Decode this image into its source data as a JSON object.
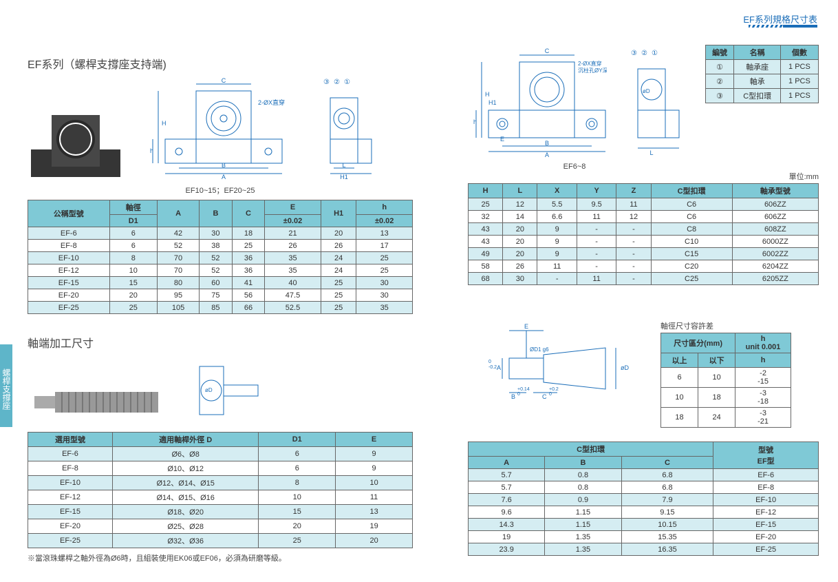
{
  "header": {
    "title": "EF系列規格尺寸表"
  },
  "sideTab": "螺桿支撐座",
  "section1": {
    "title": "EF系列（螺桿支撐座支持端)",
    "caption_left": "EF10~15；EF20~25",
    "caption_right": "EF6~8",
    "diag_labels": {
      "c": "C",
      "a": "A",
      "b": "B",
      "h": "H",
      "h1": "H1",
      "hsm": "h",
      "l": "L",
      "x2": "2-ØX直穿",
      "x2zy": "2-ØX直穿\\n沉柱孔ØY深Z",
      "m1": "①",
      "m2": "②",
      "m3": "③",
      "d": "øD",
      "e": "E"
    }
  },
  "parts": {
    "headers": [
      "編號",
      "名稱",
      "個數"
    ],
    "rows": [
      [
        "①",
        "軸承座",
        "1 PCS"
      ],
      [
        "②",
        "軸承",
        "1 PCS"
      ],
      [
        "③",
        "C型扣環",
        "1 PCS"
      ]
    ]
  },
  "unit": "單位:mm",
  "table1_left": {
    "headers": [
      "公稱型號",
      "軸徑\\nD1",
      "A",
      "B",
      "C",
      "E\\n±0.02",
      "H1",
      "h\\n±0.02"
    ],
    "rows": [
      [
        "EF-6",
        "6",
        "42",
        "30",
        "18",
        "21",
        "20",
        "13"
      ],
      [
        "EF-8",
        "6",
        "52",
        "38",
        "25",
        "26",
        "26",
        "17"
      ],
      [
        "EF-10",
        "8",
        "70",
        "52",
        "36",
        "35",
        "24",
        "25"
      ],
      [
        "EF-12",
        "10",
        "70",
        "52",
        "36",
        "35",
        "24",
        "25"
      ],
      [
        "EF-15",
        "15",
        "80",
        "60",
        "41",
        "40",
        "25",
        "30"
      ],
      [
        "EF-20",
        "20",
        "95",
        "75",
        "56",
        "47.5",
        "25",
        "30"
      ],
      [
        "EF-25",
        "25",
        "105",
        "85",
        "66",
        "52.5",
        "25",
        "35"
      ]
    ]
  },
  "table1_right": {
    "headers": [
      "H",
      "L",
      "X",
      "Y",
      "Z",
      "C型扣環",
      "軸承型號"
    ],
    "rows": [
      [
        "25",
        "12",
        "5.5",
        "9.5",
        "11",
        "C6",
        "606ZZ"
      ],
      [
        "32",
        "14",
        "6.6",
        "11",
        "12",
        "C6",
        "606ZZ"
      ],
      [
        "43",
        "20",
        "9",
        "-",
        "-",
        "C8",
        "608ZZ"
      ],
      [
        "43",
        "20",
        "9",
        "-",
        "-",
        "C10",
        "6000ZZ"
      ],
      [
        "49",
        "20",
        "9",
        "-",
        "-",
        "C15",
        "6002ZZ"
      ],
      [
        "58",
        "26",
        "11",
        "-",
        "-",
        "C20",
        "6204ZZ"
      ],
      [
        "68",
        "30",
        "-",
        "11",
        "-",
        "C25",
        "6205ZZ"
      ]
    ]
  },
  "section2": {
    "title": "軸端加工尺寸",
    "diag_labels": {
      "e": "E",
      "d1g6": "ØD1 g6",
      "a": "A",
      "b": "B",
      "c": "C",
      "d": "øD",
      "bplus": "+0.14\\n  0",
      "cplus": "+0.2\\n  0",
      "aminus": " 0\\n-0.2"
    }
  },
  "tolerance": {
    "title": "軸徑尺寸容許差",
    "headers": [
      "尺寸區分(mm)",
      "h\\nunit 0.001"
    ],
    "sub": [
      "以上",
      "以下",
      "h"
    ],
    "rows": [
      [
        "6",
        "10",
        "-2\\n-15"
      ],
      [
        "10",
        "18",
        "-3\\n-18"
      ],
      [
        "18",
        "24",
        "-3\\n-21"
      ]
    ]
  },
  "table2_left": {
    "headers": [
      "選用型號",
      "適用軸桿外徑 D",
      "D1",
      "E"
    ],
    "rows": [
      [
        "EF-6",
        "Ø6、Ø8",
        "6",
        "9"
      ],
      [
        "EF-8",
        "Ø10、Ø12",
        "6",
        "9"
      ],
      [
        "EF-10",
        "Ø12、Ø14、Ø15",
        "8",
        "10"
      ],
      [
        "EF-12",
        "Ø14、Ø15、Ø16",
        "10",
        "11"
      ],
      [
        "EF-15",
        "Ø18、Ø20",
        "15",
        "13"
      ],
      [
        "EF-20",
        "Ø25、Ø28",
        "20",
        "19"
      ],
      [
        "EF-25",
        "Ø32、Ø36",
        "25",
        "20"
      ]
    ]
  },
  "table2_right": {
    "group1": "C型扣環",
    "group2": "型號\\nEF型",
    "sub": [
      "A",
      "B",
      "C"
    ],
    "rows": [
      [
        "5.7",
        "0.8",
        "6.8",
        "EF-6"
      ],
      [
        "5.7",
        "0.8",
        "6.8",
        "EF-8"
      ],
      [
        "7.6",
        "0.9",
        "7.9",
        "EF-10"
      ],
      [
        "9.6",
        "1.15",
        "9.15",
        "EF-12"
      ],
      [
        "14.3",
        "1.15",
        "10.15",
        "EF-15"
      ],
      [
        "19",
        "1.35",
        "15.35",
        "EF-20"
      ],
      [
        "23.9",
        "1.35",
        "16.35",
        "EF-25"
      ]
    ]
  },
  "footnote": "※當滾珠螺桿之軸外徑為Ø6時，且組裝使用EK06或EF06，必須為研磨等級。",
  "colors": {
    "header_bg": "#7fc9d6",
    "alt_bg": "#d5edf2",
    "border": "#666666",
    "accent": "#1a6db8"
  }
}
